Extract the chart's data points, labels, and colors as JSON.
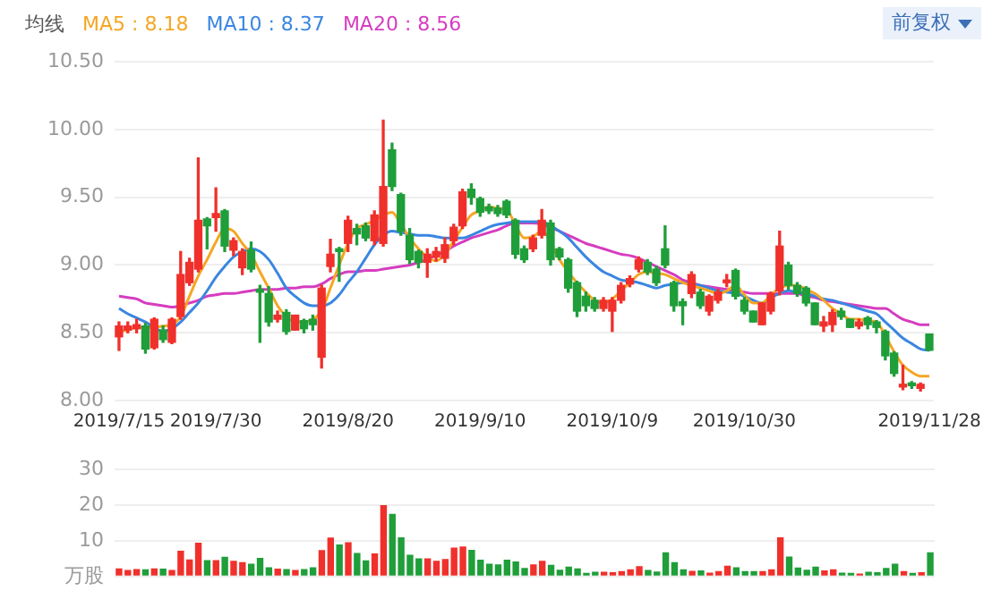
{
  "chart_data": [
    {
      "type": "candlestick",
      "categories": [
        "2019/7/15",
        null,
        null,
        null,
        null,
        null,
        null,
        null,
        null,
        null,
        null,
        "2019/7/30",
        null,
        null,
        null,
        null,
        null,
        null,
        null,
        null,
        null,
        null,
        null,
        null,
        null,
        null,
        "2019/8/20",
        null,
        null,
        null,
        null,
        null,
        null,
        null,
        null,
        null,
        null,
        null,
        null,
        null,
        null,
        "2019/9/10",
        null,
        null,
        null,
        null,
        null,
        null,
        null,
        null,
        null,
        null,
        null,
        null,
        null,
        null,
        "2019/10/9",
        null,
        null,
        null,
        null,
        null,
        null,
        null,
        null,
        null,
        null,
        null,
        null,
        null,
        null,
        "2019/10/30",
        null,
        null,
        null,
        null,
        null,
        null,
        null,
        null,
        null,
        null,
        null,
        null,
        null,
        null,
        null,
        null,
        null,
        null,
        null,
        null,
        "2019/11/28"
      ],
      "ohlc": [
        [
          8.47,
          8.58,
          8.37,
          8.55
        ],
        [
          8.52,
          8.58,
          8.5,
          8.55
        ],
        [
          8.53,
          8.6,
          8.5,
          8.56
        ],
        [
          8.55,
          8.57,
          8.35,
          8.38
        ],
        [
          8.39,
          8.61,
          8.38,
          8.6
        ],
        [
          8.52,
          8.55,
          8.43,
          8.45
        ],
        [
          8.43,
          8.61,
          8.42,
          8.6
        ],
        [
          8.62,
          9.1,
          8.6,
          8.93
        ],
        [
          8.87,
          9.05,
          8.85,
          9.02
        ],
        [
          8.97,
          9.79,
          8.95,
          9.33
        ],
        [
          9.34,
          9.35,
          9.12,
          9.29
        ],
        [
          9.35,
          9.57,
          9.25,
          9.38
        ],
        [
          9.4,
          9.41,
          9.1,
          9.14
        ],
        [
          9.11,
          9.2,
          9.07,
          9.18
        ],
        [
          8.98,
          9.12,
          8.93,
          9.1
        ],
        [
          9.11,
          9.17,
          8.95,
          8.97
        ],
        [
          8.82,
          8.85,
          8.43,
          8.8
        ],
        [
          8.79,
          8.84,
          8.55,
          8.58
        ],
        [
          8.6,
          8.66,
          8.58,
          8.63
        ],
        [
          8.65,
          8.67,
          8.49,
          8.51
        ],
        [
          8.52,
          8.63,
          8.52,
          8.63
        ],
        [
          8.59,
          8.6,
          8.5,
          8.53
        ],
        [
          8.6,
          8.63,
          8.52,
          8.56
        ],
        [
          8.32,
          8.85,
          8.24,
          8.83
        ],
        [
          8.99,
          9.19,
          8.95,
          9.08
        ],
        [
          9.12,
          9.13,
          8.88,
          9.1
        ],
        [
          9.16,
          9.36,
          9.1,
          9.33
        ],
        [
          9.27,
          9.3,
          9.15,
          9.23
        ],
        [
          9.29,
          9.31,
          9.18,
          9.2
        ],
        [
          9.18,
          9.4,
          9.15,
          9.37
        ],
        [
          9.16,
          10.07,
          9.14,
          9.58
        ],
        [
          9.85,
          9.9,
          9.55,
          9.58
        ],
        [
          9.52,
          9.53,
          9.22,
          9.25
        ],
        [
          9.22,
          9.27,
          9.01,
          9.04
        ],
        [
          9.1,
          9.11,
          8.98,
          9.02
        ],
        [
          9.02,
          9.12,
          8.91,
          9.08
        ],
        [
          9.06,
          9.13,
          9.03,
          9.1
        ],
        [
          9.05,
          9.2,
          9.02,
          9.15
        ],
        [
          9.18,
          9.3,
          9.15,
          9.28
        ],
        [
          9.29,
          9.56,
          9.27,
          9.54
        ],
        [
          9.56,
          9.6,
          9.45,
          9.5
        ],
        [
          9.49,
          9.5,
          9.36,
          9.39
        ],
        [
          9.43,
          9.45,
          9.38,
          9.4
        ],
        [
          9.42,
          9.44,
          9.36,
          9.38
        ],
        [
          9.47,
          9.48,
          9.35,
          9.37
        ],
        [
          9.33,
          9.34,
          9.05,
          9.08
        ],
        [
          9.12,
          9.14,
          9.02,
          9.04
        ],
        [
          9.12,
          9.22,
          9.1,
          9.2
        ],
        [
          9.22,
          9.41,
          9.2,
          9.33
        ],
        [
          9.31,
          9.33,
          9.0,
          9.04
        ],
        [
          9.12,
          9.13,
          9.04,
          9.06
        ],
        [
          9.04,
          9.05,
          8.8,
          8.83
        ],
        [
          8.87,
          8.88,
          8.62,
          8.66
        ],
        [
          8.77,
          8.8,
          8.66,
          8.7
        ],
        [
          8.74,
          8.76,
          8.66,
          8.68
        ],
        [
          8.68,
          8.76,
          8.66,
          8.74
        ],
        [
          8.66,
          8.76,
          8.51,
          8.74
        ],
        [
          8.74,
          8.87,
          8.72,
          8.85
        ],
        [
          8.86,
          8.92,
          8.84,
          8.9
        ],
        [
          8.97,
          9.06,
          8.95,
          9.04
        ],
        [
          9.02,
          9.04,
          8.93,
          8.95
        ],
        [
          8.97,
          8.99,
          8.85,
          8.87
        ],
        [
          9.12,
          9.29,
          8.98,
          9.0
        ],
        [
          8.87,
          8.88,
          8.66,
          8.7
        ],
        [
          8.73,
          8.75,
          8.56,
          8.7
        ],
        [
          8.79,
          8.95,
          8.76,
          8.93
        ],
        [
          8.8,
          8.82,
          8.68,
          8.7
        ],
        [
          8.66,
          8.78,
          8.63,
          8.77
        ],
        [
          8.74,
          8.82,
          8.72,
          8.8
        ],
        [
          8.87,
          8.93,
          8.84,
          8.89
        ],
        [
          8.96,
          8.97,
          8.75,
          8.77
        ],
        [
          8.74,
          8.76,
          8.64,
          8.66
        ],
        [
          8.66,
          8.66,
          8.58,
          8.58
        ],
        [
          8.56,
          8.72,
          8.56,
          8.72
        ],
        [
          8.66,
          8.8,
          8.64,
          8.79
        ],
        [
          8.81,
          9.25,
          8.78,
          9.14
        ],
        [
          9.0,
          9.02,
          8.82,
          8.85
        ],
        [
          8.85,
          8.87,
          8.77,
          8.79
        ],
        [
          8.83,
          8.84,
          8.7,
          8.72
        ],
        [
          8.72,
          8.72,
          8.56,
          8.56
        ],
        [
          8.55,
          8.62,
          8.51,
          8.58
        ],
        [
          8.56,
          8.67,
          8.51,
          8.65
        ],
        [
          8.66,
          8.68,
          8.6,
          8.62
        ],
        [
          8.6,
          8.6,
          8.54,
          8.54
        ],
        [
          8.55,
          8.6,
          8.53,
          8.58
        ],
        [
          8.61,
          8.62,
          8.53,
          8.56
        ],
        [
          8.58,
          8.59,
          8.5,
          8.54
        ],
        [
          8.51,
          8.52,
          8.3,
          8.33
        ],
        [
          8.35,
          8.36,
          8.18,
          8.2
        ],
        [
          8.1,
          8.26,
          8.08,
          8.12
        ],
        [
          8.13,
          8.14,
          8.09,
          8.11
        ],
        [
          8.09,
          8.13,
          8.07,
          8.12
        ],
        [
          8.49,
          8.49,
          8.37,
          8.37
        ]
      ],
      "colors": [
        "#f0302b",
        "#f0302b",
        "#f0302b",
        "#1f9e3a",
        "#f0302b",
        "#1f9e3a",
        "#f0302b",
        "#f0302b",
        "#f0302b",
        "#f0302b",
        "#1f9e3a",
        "#f0302b",
        "#1f9e3a",
        "#f0302b",
        "#f0302b",
        "#1f9e3a",
        "#1f9e3a",
        "#1f9e3a",
        "#f0302b",
        "#1f9e3a",
        "#f0302b",
        "#1f9e3a",
        "#1f9e3a",
        "#f0302b",
        "#f0302b",
        "#1f9e3a",
        "#f0302b",
        "#1f9e3a",
        "#1f9e3a",
        "#f0302b",
        "#f0302b",
        "#1f9e3a",
        "#1f9e3a",
        "#1f9e3a",
        "#1f9e3a",
        "#f0302b",
        "#f0302b",
        "#f0302b",
        "#f0302b",
        "#f0302b",
        "#1f9e3a",
        "#1f9e3a",
        "#1f9e3a",
        "#1f9e3a",
        "#1f9e3a",
        "#1f9e3a",
        "#1f9e3a",
        "#f0302b",
        "#f0302b",
        "#1f9e3a",
        "#1f9e3a",
        "#1f9e3a",
        "#1f9e3a",
        "#1f9e3a",
        "#1f9e3a",
        "#f0302b",
        "#f0302b",
        "#f0302b",
        "#f0302b",
        "#f0302b",
        "#1f9e3a",
        "#1f9e3a",
        "#1f9e3a",
        "#1f9e3a",
        "#1f9e3a",
        "#f0302b",
        "#1f9e3a",
        "#f0302b",
        "#f0302b",
        "#f0302b",
        "#1f9e3a",
        "#1f9e3a",
        "#1f9e3a",
        "#f0302b",
        "#f0302b",
        "#f0302b",
        "#1f9e3a",
        "#1f9e3a",
        "#1f9e3a",
        "#1f9e3a",
        "#f0302b",
        "#f0302b",
        "#1f9e3a",
        "#1f9e3a",
        "#f0302b",
        "#1f9e3a",
        "#1f9e3a",
        "#1f9e3a",
        "#1f9e3a",
        "#f0302b",
        "#1f9e3a",
        "#f0302b",
        "#1f9e3a"
      ],
      "series": [
        {
          "name": "MA5 : 8.18",
          "type": "line",
          "color": "#f5a623",
          "values": [
            8.51,
            8.52,
            8.54,
            null,
            8.54,
            8.55,
            8.56,
            8.62,
            8.77,
            8.92,
            9.04,
            9.17,
            9.27,
            9.25,
            9.16,
            9.08,
            8.95,
            8.83,
            8.7,
            8.62,
            8.58,
            8.58,
            8.6,
            8.66,
            8.83,
            9.0,
            9.16,
            9.27,
            9.3,
            9.33,
            9.37,
            9.39,
            9.3,
            9.2,
            9.12,
            9.06,
            9.03,
            9.08,
            9.18,
            9.28,
            9.37,
            9.4,
            9.43,
            9.42,
            9.41,
            9.3,
            9.2,
            9.21,
            9.25,
            null,
            9.04,
            8.95,
            8.87,
            8.8,
            8.74,
            8.72,
            8.75,
            8.81,
            8.87,
            8.93,
            8.95,
            8.94,
            8.93,
            8.9,
            8.87,
            8.85,
            8.83,
            8.81,
            8.79,
            8.81,
            8.85,
            8.78,
            8.72,
            8.72,
            8.78,
            8.83,
            8.85,
            8.85,
            8.82,
            8.79,
            8.74,
            8.68,
            8.64,
            8.6,
            8.6,
            8.59,
            8.58,
            8.48,
            8.36,
            8.26,
            8.21,
            8.18,
            8.18
          ]
        },
        {
          "name": "MA10 : 8.37",
          "type": "line",
          "color": "#3a86e0",
          "values": [
            8.68,
            8.64,
            8.61,
            8.58,
            8.54,
            8.51,
            8.53,
            8.58,
            8.65,
            8.72,
            8.81,
            8.91,
            8.99,
            9.06,
            9.1,
            9.12,
            9.1,
            9.04,
            8.94,
            8.83,
            8.77,
            8.72,
            8.7,
            8.7,
            8.72,
            8.78,
            8.87,
            8.95,
            9.05,
            9.15,
            9.22,
            9.25,
            9.24,
            9.23,
            9.22,
            9.22,
            9.21,
            9.2,
            9.2,
            9.2,
            9.22,
            9.25,
            9.28,
            9.3,
            9.31,
            9.32,
            9.32,
            9.32,
            9.32,
            9.29,
            9.25,
            9.2,
            9.13,
            9.06,
            9.0,
            8.95,
            8.92,
            8.89,
            8.88,
            8.87,
            8.85,
            8.83,
            8.85,
            8.86,
            8.87,
            8.86,
            8.85,
            8.83,
            8.81,
            8.8,
            8.79,
            8.77,
            8.74,
            8.72,
            8.76,
            8.79,
            8.81,
            8.8,
            8.79,
            8.77,
            8.75,
            8.74,
            8.72,
            8.7,
            8.68,
            8.66,
            8.64,
            8.58,
            8.52,
            8.46,
            8.42,
            8.38,
            8.37
          ]
        },
        {
          "name": "MA20 : 8.56",
          "type": "line",
          "color": "#d63cc0",
          "values": [
            8.77,
            8.76,
            8.75,
            8.72,
            8.71,
            8.7,
            8.69,
            8.7,
            8.72,
            8.74,
            8.77,
            8.78,
            8.79,
            8.79,
            8.8,
            8.81,
            8.82,
            8.82,
            8.82,
            8.83,
            8.83,
            8.84,
            8.84,
            8.86,
            8.9,
            8.93,
            8.95,
            8.95,
            8.96,
            8.96,
            8.97,
            8.98,
            8.99,
            9.0,
            9.02,
            9.04,
            9.07,
            9.1,
            9.14,
            9.17,
            9.2,
            9.22,
            9.24,
            9.26,
            9.29,
            9.31,
            9.31,
            9.31,
            9.3,
            null,
            9.25,
            9.22,
            9.19,
            9.16,
            9.14,
            9.12,
            9.1,
            9.08,
            9.07,
            9.05,
            9.02,
            8.99,
            8.96,
            8.93,
            8.89,
            8.87,
            8.85,
            8.84,
            8.83,
            8.82,
            8.81,
            8.8,
            8.79,
            8.79,
            8.79,
            8.79,
            8.79,
            8.79,
            8.77,
            8.76,
            8.74,
            8.73,
            8.72,
            8.71,
            8.7,
            8.69,
            8.68,
            8.68,
            8.64,
            8.6,
            8.58,
            8.56,
            8.56
          ]
        }
      ],
      "legend_title": "均线",
      "legend": "top left",
      "annotations": [
        "前复权"
      ],
      "ylim": [
        8,
        10.5
      ],
      "yticks": [
        {
          "value": 8,
          "label": "8.00"
        },
        {
          "value": 8.5,
          "label": "8.50"
        },
        {
          "value": 9,
          "label": "9.00"
        },
        {
          "value": 9.5,
          "label": "9.50"
        },
        {
          "value": 10,
          "label": "10.00"
        },
        {
          "value": 10.5,
          "label": "10.50"
        }
      ],
      "grid": "y"
    },
    {
      "type": "bar",
      "categories": [
        null,
        null,
        null,
        null,
        null,
        null,
        null,
        null,
        null,
        null,
        null,
        null,
        null,
        null,
        null,
        null,
        null,
        null,
        null,
        null,
        null,
        null,
        null,
        null,
        null,
        null,
        null,
        null,
        null,
        null,
        null,
        null,
        null,
        null,
        null,
        null,
        null,
        null,
        null,
        null,
        null,
        null,
        null,
        null,
        null,
        null,
        null,
        null,
        null,
        null,
        null,
        null,
        null,
        null,
        null,
        null,
        null,
        null,
        null,
        null,
        null,
        null,
        null,
        null,
        null,
        null,
        null,
        null,
        null,
        null,
        null,
        null,
        null,
        null,
        null,
        null,
        null,
        null,
        null,
        null,
        null,
        null,
        null,
        null,
        null,
        null,
        null,
        null,
        null,
        null,
        null,
        null,
        null
      ],
      "values": [
        2.3,
        1.8,
        2.1,
        2.0,
        2.3,
        2.2,
        1.8,
        7.2,
        4.8,
        9.5,
        4.6,
        4.6,
        5.5,
        4.4,
        4.0,
        3.6,
        5.2,
        2.6,
        2.2,
        2.1,
        1.8,
        2.1,
        2.6,
        7.4,
        10.9,
        9.0,
        9.6,
        6.6,
        4.5,
        6.5,
        20,
        17.6,
        11.0,
        6.1,
        5.1,
        5.1,
        4.4,
        4.9,
        8.1,
        8.4,
        7.5,
        4.7,
        3.6,
        3.4,
        4.7,
        4.2,
        2.4,
        3.4,
        4.4,
        3.3,
        1.9,
        2.8,
        2.3,
        1.0,
        1.3,
        1.3,
        1.2,
        1.5,
        2.0,
        2.9,
        1.8,
        1.4,
        6.8,
        4.0,
        2.0,
        1.6,
        1.7,
        1.1,
        1.5,
        3.0,
        2.6,
        1.5,
        1.5,
        1.5,
        2.0,
        11.0,
        5.6,
        2.5,
        1.9,
        2.8,
        1.7,
        2.0,
        1.1,
        1.0,
        0.8,
        1.3,
        1.2,
        2.4,
        3.6,
        1.5,
        1.0,
        1.2,
        6.8
      ],
      "colors": [
        "#f0302b",
        "#f0302b",
        "#f0302b",
        "#1f9e3a",
        "#f0302b",
        "#1f9e3a",
        "#f0302b",
        "#f0302b",
        "#f0302b",
        "#f0302b",
        "#1f9e3a",
        "#f0302b",
        "#1f9e3a",
        "#f0302b",
        "#f0302b",
        "#1f9e3a",
        "#1f9e3a",
        "#1f9e3a",
        "#f0302b",
        "#1f9e3a",
        "#f0302b",
        "#1f9e3a",
        "#1f9e3a",
        "#f0302b",
        "#f0302b",
        "#1f9e3a",
        "#f0302b",
        "#1f9e3a",
        "#1f9e3a",
        "#f0302b",
        "#f0302b",
        "#1f9e3a",
        "#1f9e3a",
        "#1f9e3a",
        "#1f9e3a",
        "#f0302b",
        "#f0302b",
        "#f0302b",
        "#f0302b",
        "#f0302b",
        "#1f9e3a",
        "#1f9e3a",
        "#1f9e3a",
        "#1f9e3a",
        "#1f9e3a",
        "#1f9e3a",
        "#1f9e3a",
        "#f0302b",
        "#f0302b",
        "#1f9e3a",
        "#1f9e3a",
        "#1f9e3a",
        "#1f9e3a",
        "#1f9e3a",
        "#1f9e3a",
        "#f0302b",
        "#f0302b",
        "#f0302b",
        "#f0302b",
        "#f0302b",
        "#1f9e3a",
        "#1f9e3a",
        "#1f9e3a",
        "#1f9e3a",
        "#1f9e3a",
        "#f0302b",
        "#1f9e3a",
        "#f0302b",
        "#f0302b",
        "#f0302b",
        "#1f9e3a",
        "#1f9e3a",
        "#1f9e3a",
        "#f0302b",
        "#f0302b",
        "#f0302b",
        "#1f9e3a",
        "#1f9e3a",
        "#1f9e3a",
        "#1f9e3a",
        "#f0302b",
        "#f0302b",
        "#1f9e3a",
        "#1f9e3a",
        "#f0302b",
        "#1f9e3a",
        "#1f9e3a",
        "#1f9e3a",
        "#1f9e3a",
        "#f0302b",
        "#1f9e3a",
        "#f0302b",
        "#1f9e3a"
      ],
      "ylim": [
        0,
        30
      ],
      "yticks": [
        {
          "value": 0,
          "label": "万股"
        },
        10,
        20,
        30
      ],
      "grid": "y",
      "tick_labels": "y"
    }
  ]
}
